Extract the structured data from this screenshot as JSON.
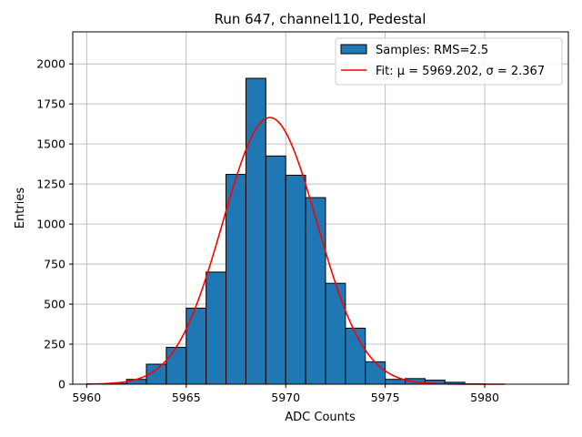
{
  "chart_data": {
    "type": "bar",
    "title": "Run 647, channel110, Pedestal",
    "xlabel": "ADC Counts",
    "ylabel": "Entries",
    "xlim": [
      5959.3,
      5984.2
    ],
    "ylim": [
      0,
      2200
    ],
    "xticks": [
      5960,
      5965,
      5970,
      5975,
      5980
    ],
    "yticks": [
      0,
      250,
      500,
      750,
      1000,
      1250,
      1500,
      1750,
      2000
    ],
    "grid": true,
    "legend_position": "top-right",
    "histogram": {
      "name": "Samples: RMS=2.5",
      "color": "#1f77b4",
      "bin_width": 1,
      "bin_starts": [
        5960,
        5961,
        5962,
        5963,
        5964,
        5965,
        5966,
        5967,
        5968,
        5969,
        5970,
        5971,
        5972,
        5973,
        5974,
        5975,
        5976,
        5977,
        5978,
        5979,
        5980,
        5981,
        5982
      ],
      "values": [
        2,
        5,
        30,
        125,
        230,
        475,
        700,
        1310,
        1910,
        1425,
        1305,
        1165,
        630,
        350,
        140,
        30,
        35,
        25,
        12,
        2,
        0,
        0,
        0
      ]
    },
    "fit": {
      "name": "Fit: μ = 5969.202, σ = 2.367",
      "color": "#ff0000",
      "mu": 5969.202,
      "sigma": 2.367,
      "amplitude": 1665,
      "x_range": [
        5960,
        5981
      ]
    }
  }
}
